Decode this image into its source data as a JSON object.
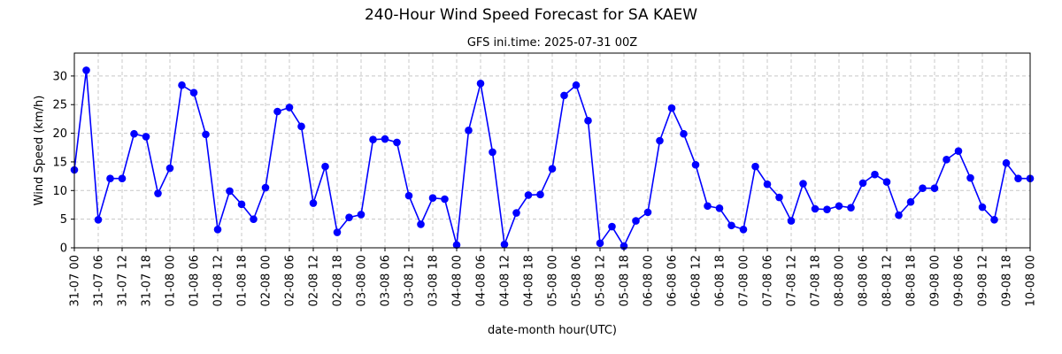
{
  "chart_data": {
    "type": "line",
    "title": "240-Hour Wind Speed Forecast for SA KAEW",
    "subtitle": "GFS ini.time: 2025-07-31 00Z",
    "xlabel": "date-month hour(UTC)",
    "ylabel": "Wind Speed (km/h)",
    "ylim": [
      0,
      34
    ],
    "yticks": [
      0,
      5,
      10,
      15,
      20,
      25,
      30
    ],
    "grid": true,
    "line_color": "#0000ff",
    "marker_color": "#0000ff",
    "grid_color": "#c8c8c8",
    "step_hours": 3,
    "x_ticks_every": 2,
    "categories": [
      "31-07 00",
      "31-07 03",
      "31-07 06",
      "31-07 09",
      "31-07 12",
      "31-07 15",
      "31-07 18",
      "31-07 21",
      "01-08 00",
      "01-08 03",
      "01-08 06",
      "01-08 09",
      "01-08 12",
      "01-08 15",
      "01-08 18",
      "01-08 21",
      "02-08 00",
      "02-08 03",
      "02-08 06",
      "02-08 09",
      "02-08 12",
      "02-08 15",
      "02-08 18",
      "02-08 21",
      "03-08 00",
      "03-08 03",
      "03-08 06",
      "03-08 09",
      "03-08 12",
      "03-08 15",
      "03-08 18",
      "03-08 21",
      "04-08 00",
      "04-08 03",
      "04-08 06",
      "04-08 09",
      "04-08 12",
      "04-08 15",
      "04-08 18",
      "04-08 21",
      "05-08 00",
      "05-08 03",
      "05-08 06",
      "05-08 09",
      "05-08 12",
      "05-08 15",
      "05-08 18",
      "05-08 21",
      "06-08 00",
      "06-08 03",
      "06-08 06",
      "06-08 09",
      "06-08 12",
      "06-08 15",
      "06-08 18",
      "06-08 21",
      "07-08 00",
      "07-08 03",
      "07-08 06",
      "07-08 09",
      "07-08 12",
      "07-08 15",
      "07-08 18",
      "07-08 21",
      "08-08 00",
      "08-08 03",
      "08-08 06",
      "08-08 09",
      "08-08 12",
      "08-08 15",
      "08-08 18",
      "08-08 21",
      "09-08 00",
      "09-08 03",
      "09-08 06",
      "09-08 09",
      "09-08 12",
      "09-08 15",
      "09-08 18",
      "09-08 21",
      "10-08 00"
    ],
    "values": [
      13.6,
      31.0,
      4.9,
      12.1,
      12.1,
      19.9,
      19.4,
      9.5,
      13.9,
      28.4,
      27.1,
      19.8,
      3.2,
      9.9,
      7.6,
      5.0,
      10.5,
      23.8,
      24.5,
      21.2,
      7.8,
      14.2,
      2.7,
      5.3,
      5.8,
      18.9,
      19.0,
      18.4,
      9.1,
      4.1,
      8.7,
      8.5,
      0.5,
      20.5,
      28.7,
      16.7,
      0.6,
      6.1,
      9.2,
      9.3,
      13.8,
      26.6,
      28.4,
      22.2,
      0.8,
      3.7,
      0.3,
      4.7,
      6.2,
      18.7,
      24.4,
      19.9,
      14.5,
      7.3,
      6.9,
      3.9,
      3.2,
      14.2,
      11.1,
      8.8,
      4.7,
      11.2,
      6.8,
      6.7,
      7.3,
      7.0,
      11.3,
      12.8,
      11.5,
      5.7,
      8.0,
      10.4,
      10.4,
      15.4,
      16.9,
      12.2,
      7.1,
      4.9,
      14.8,
      12.1,
      12.1
    ]
  }
}
